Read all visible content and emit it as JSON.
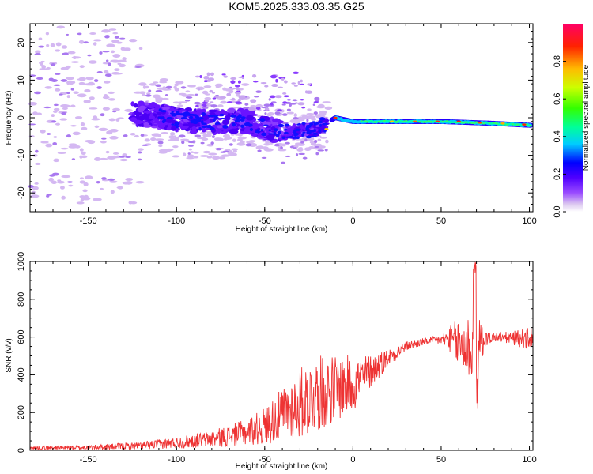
{
  "title": "KOM5.2025.333.03.35.G25",
  "chart_data": [
    {
      "type": "heatmap",
      "name": "spectrogram",
      "xlabel": "Height of straight line (km)",
      "ylabel": "Frequency (Hz)",
      "xlim": [
        -183,
        102
      ],
      "ylim": [
        -25,
        25
      ],
      "xticks": [
        -150,
        -100,
        -50,
        0,
        50,
        100
      ],
      "yticks": [
        -20,
        -10,
        0,
        10,
        20
      ],
      "colorbar": {
        "label": "Normalized spectral amplitude",
        "range": [
          0,
          1
        ],
        "ticks": [
          "0.0",
          "0.2",
          "0.4",
          "0.6",
          "0.8"
        ]
      },
      "ridge": {
        "description_points": [
          {
            "x": -120,
            "f": 1
          },
          {
            "x": -90,
            "f": -1
          },
          {
            "x": -60,
            "f": -1
          },
          {
            "x": -40,
            "f": -4
          },
          {
            "x": -20,
            "f": -3
          },
          {
            "x": -10,
            "f": 0
          },
          {
            "x": 0,
            "f": -1
          },
          {
            "x": 20,
            "f": -1
          },
          {
            "x": 50,
            "f": -1
          },
          {
            "x": 80,
            "f": -1.5
          },
          {
            "x": 100,
            "f": -2
          }
        ]
      }
    },
    {
      "type": "line",
      "name": "snr",
      "xlabel": "Height of straight line (km)",
      "ylabel": "SNR (v/v)",
      "xlim": [
        -183,
        102
      ],
      "ylim": [
        0,
        1000
      ],
      "xticks": [
        -150,
        -100,
        -50,
        0,
        50,
        100
      ],
      "yticks": [
        0,
        200,
        400,
        600,
        800,
        1000
      ],
      "color": "#ee3333",
      "envelope": {
        "x": [
          -183,
          -150,
          -120,
          -100,
          -80,
          -60,
          -50,
          -40,
          -30,
          -20,
          -10,
          0,
          10,
          20,
          30,
          40,
          50,
          55,
          60,
          65,
          70,
          75,
          80,
          90,
          100,
          102
        ],
        "base": [
          12,
          15,
          25,
          40,
          60,
          95,
          130,
          190,
          250,
          300,
          330,
          350,
          420,
          490,
          550,
          575,
          585,
          590,
          560,
          550,
          520,
          590,
          600,
          595,
          590,
          600
        ],
        "noise": [
          10,
          12,
          20,
          30,
          45,
          70,
          100,
          140,
          190,
          200,
          180,
          150,
          90,
          50,
          25,
          20,
          25,
          70,
          150,
          180,
          230,
          40,
          25,
          35,
          60,
          60
        ]
      }
    }
  ]
}
